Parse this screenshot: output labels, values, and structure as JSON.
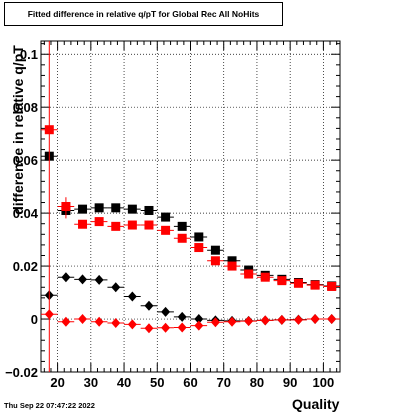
{
  "title": "Fitted difference in relative q/pT for Global Rec All NoHits",
  "timestamp": "Thu Sep 22 07:47:22 2022",
  "chart_data": {
    "type": "scatter",
    "xlabel": "Quality",
    "ylabel": "difference in relative q/pT",
    "xlim": [
      15,
      105
    ],
    "ylim": [
      -0.02,
      0.105
    ],
    "x_ticks": [
      20,
      30,
      40,
      50,
      60,
      70,
      80,
      90,
      100
    ],
    "x_tick_labels": [
      "20",
      "30",
      "40",
      "50",
      "60",
      "70",
      "80",
      "90",
      "100"
    ],
    "y_ticks": [
      -0.02,
      0,
      0.02,
      0.04,
      0.06,
      0.08,
      0.1
    ],
    "y_tick_labels": [
      "−0.02",
      "0",
      "0.02",
      "0.04",
      "0.06",
      "0.08",
      "0.1"
    ],
    "grid": true,
    "legend": "none",
    "series": [
      {
        "marker": "square",
        "color": "#000000",
        "x": [
          17.5,
          22.5,
          27.5,
          32.5,
          37.5,
          42.5,
          47.5,
          52.5,
          57.5,
          62.5,
          67.5,
          72.5,
          77.5,
          82.5,
          87.5,
          92.5,
          97.5,
          102.5
        ],
        "y": [
          0.0615,
          0.041,
          0.0415,
          0.042,
          0.042,
          0.0415,
          0.041,
          0.0385,
          0.035,
          0.031,
          0.026,
          0.022,
          0.0185,
          0.0165,
          0.015,
          0.0138,
          0.013,
          0.0125
        ]
      },
      {
        "marker": "square",
        "color": "#ff0000",
        "x": [
          17.5,
          22.5,
          27.5,
          32.5,
          37.5,
          42.5,
          47.5,
          52.5,
          57.5,
          62.5,
          67.5,
          72.5,
          77.5,
          82.5,
          87.5,
          92.5,
          97.5,
          102.5
        ],
        "y": [
          0.0715,
          0.0425,
          0.0358,
          0.0368,
          0.035,
          0.0355,
          0.0355,
          0.0335,
          0.0305,
          0.027,
          0.022,
          0.02,
          0.017,
          0.0158,
          0.0145,
          0.0135,
          0.0128,
          0.0123
        ]
      },
      {
        "marker": "diamond",
        "color": "#000000",
        "x": [
          17.5,
          22.5,
          27.5,
          32.5,
          37.5,
          42.5,
          47.5,
          52.5,
          57.5,
          62.5,
          67.5,
          72.5,
          77.5,
          82.5,
          87.5,
          92.5,
          97.5,
          102.5
        ],
        "y": [
          0.009,
          0.0158,
          0.015,
          0.0148,
          0.012,
          0.0085,
          0.005,
          0.0027,
          0.0008,
          0.0,
          -0.0005,
          -0.0007,
          -0.0007,
          -0.0005,
          -0.0003,
          -0.0002,
          0.0,
          0.0
        ]
      },
      {
        "marker": "diamond",
        "color": "#ff0000",
        "x": [
          17.5,
          22.5,
          27.5,
          32.5,
          37.5,
          42.5,
          47.5,
          52.5,
          57.5,
          62.5,
          67.5,
          72.5,
          77.5,
          82.5,
          87.5,
          92.5,
          97.5,
          102.5
        ],
        "y": [
          0.0018,
          -0.001,
          0.0,
          -0.001,
          -0.0015,
          -0.002,
          -0.0035,
          -0.0033,
          -0.0032,
          -0.0025,
          -0.0012,
          -0.001,
          -0.0008,
          -0.0005,
          -0.0003,
          -0.0003,
          0.0,
          0.0
        ]
      }
    ]
  }
}
